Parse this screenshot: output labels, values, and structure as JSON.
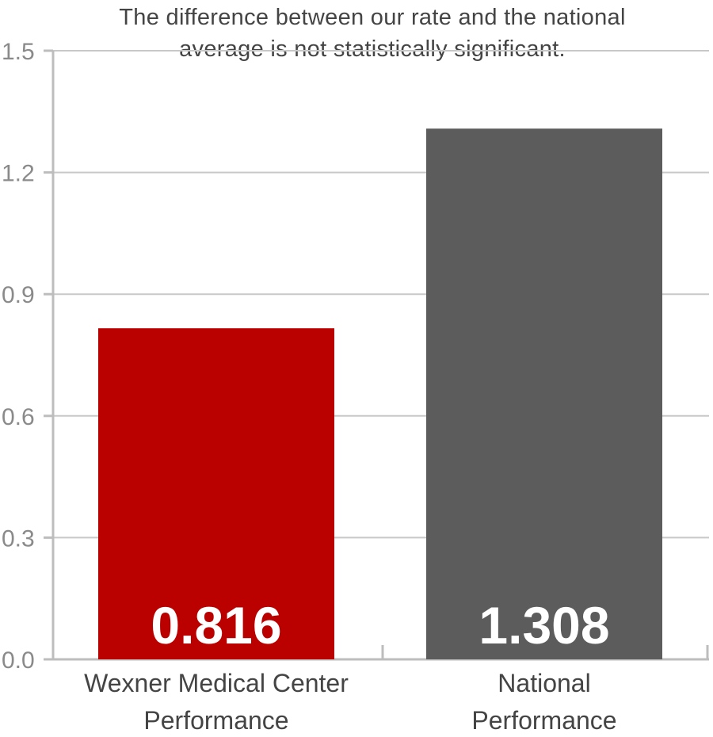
{
  "note": {
    "line1": "The difference between our rate and the national",
    "line2": "average is not statistically significant."
  },
  "chart_data": {
    "type": "bar",
    "categories": [
      [
        "Wexner Medical Center",
        "Performance"
      ],
      [
        "National",
        "Performance"
      ]
    ],
    "values": [
      0.816,
      1.308
    ],
    "value_labels": [
      "0.816",
      "1.308"
    ],
    "colors": [
      "#bb0000",
      "#5c5c5c"
    ],
    "ylim": [
      0,
      1.5
    ],
    "yticks": [
      "0.0",
      "0.3",
      "0.6",
      "0.9",
      "1.2",
      "1.5"
    ],
    "grid": true
  }
}
